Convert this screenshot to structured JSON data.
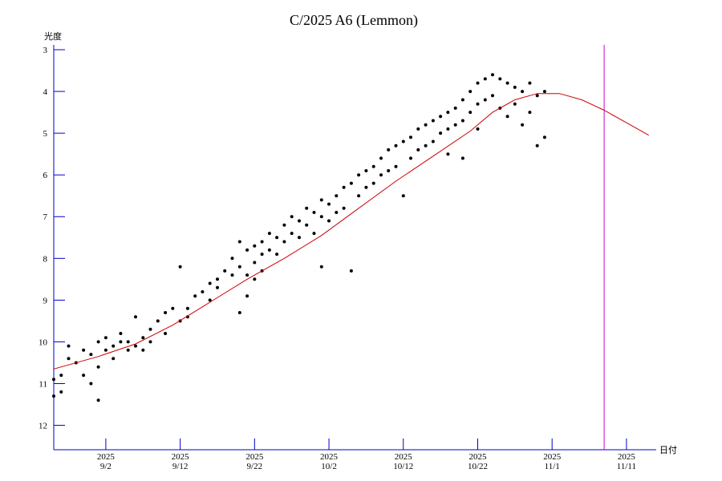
{
  "chart_data": {
    "type": "scatter",
    "title": "C/2025 A6 (Lemmon)",
    "ylabel": "光度",
    "xlabel": "日付",
    "y_inverted": true,
    "ylim": [
      3,
      12.7
    ],
    "xlim": [
      "2025-08-26",
      "2025-11-15"
    ],
    "y_ticks": [
      "3",
      "4",
      "5",
      "6",
      "7",
      "8",
      "9",
      "10",
      "11",
      "12"
    ],
    "x_ticks": [
      {
        "date": "2025-09-02",
        "year": "2025",
        "label": "9/2"
      },
      {
        "date": "2025-09-12",
        "year": "2025",
        "label": "9/12"
      },
      {
        "date": "2025-09-22",
        "year": "2025",
        "label": "9/22"
      },
      {
        "date": "2025-10-02",
        "year": "2025",
        "label": "10/2"
      },
      {
        "date": "2025-10-12",
        "year": "2025",
        "label": "10/12"
      },
      {
        "date": "2025-10-22",
        "year": "2025",
        "label": "10/22"
      },
      {
        "date": "2025-11-01",
        "year": "2025",
        "label": "11/1"
      },
      {
        "date": "2025-11-11",
        "year": "2025",
        "label": "11/11"
      }
    ],
    "vertical_marker": {
      "date": "2025-11-08",
      "color": "#cc00cc"
    },
    "fit_curve": {
      "color": "#cc0000",
      "x": [
        "2025-08-26",
        "2025-09-01",
        "2025-09-06",
        "2025-09-11",
        "2025-09-16",
        "2025-09-21",
        "2025-09-26",
        "2025-10-01",
        "2025-10-06",
        "2025-10-11",
        "2025-10-16",
        "2025-10-21",
        "2025-10-24",
        "2025-10-27",
        "2025-10-30",
        "2025-11-02",
        "2025-11-05",
        "2025-11-08",
        "2025-11-11",
        "2025-11-14"
      ],
      "y": [
        10.65,
        10.35,
        10.05,
        9.6,
        9.05,
        8.5,
        8.0,
        7.45,
        6.8,
        6.15,
        5.55,
        4.95,
        4.5,
        4.2,
        4.05,
        4.05,
        4.2,
        4.45,
        4.75,
        5.05
      ]
    },
    "points": {
      "color": "#000000",
      "x": [
        "2025-08-26",
        "2025-08-26",
        "2025-08-27",
        "2025-08-27",
        "2025-08-28",
        "2025-08-28",
        "2025-08-29",
        "2025-08-30",
        "2025-08-30",
        "2025-08-31",
        "2025-08-31",
        "2025-09-01",
        "2025-09-01",
        "2025-09-01",
        "2025-09-02",
        "2025-09-02",
        "2025-09-03",
        "2025-09-03",
        "2025-09-04",
        "2025-09-04",
        "2025-09-05",
        "2025-09-05",
        "2025-09-06",
        "2025-09-06",
        "2025-09-07",
        "2025-09-07",
        "2025-09-08",
        "2025-09-08",
        "2025-09-09",
        "2025-09-10",
        "2025-09-10",
        "2025-09-11",
        "2025-09-12",
        "2025-09-12",
        "2025-09-13",
        "2025-09-13",
        "2025-09-14",
        "2025-09-15",
        "2025-09-16",
        "2025-09-16",
        "2025-09-17",
        "2025-09-17",
        "2025-09-18",
        "2025-09-19",
        "2025-09-19",
        "2025-09-20",
        "2025-09-20",
        "2025-09-20",
        "2025-09-21",
        "2025-09-21",
        "2025-09-21",
        "2025-09-22",
        "2025-09-22",
        "2025-09-22",
        "2025-09-23",
        "2025-09-23",
        "2025-09-23",
        "2025-09-24",
        "2025-09-24",
        "2025-09-25",
        "2025-09-25",
        "2025-09-26",
        "2025-09-26",
        "2025-09-27",
        "2025-09-27",
        "2025-09-28",
        "2025-09-28",
        "2025-09-29",
        "2025-09-29",
        "2025-09-30",
        "2025-09-30",
        "2025-10-01",
        "2025-10-01",
        "2025-10-01",
        "2025-10-02",
        "2025-10-02",
        "2025-10-03",
        "2025-10-03",
        "2025-10-04",
        "2025-10-04",
        "2025-10-05",
        "2025-10-05",
        "2025-10-06",
        "2025-10-06",
        "2025-10-07",
        "2025-10-07",
        "2025-10-08",
        "2025-10-08",
        "2025-10-09",
        "2025-10-09",
        "2025-10-10",
        "2025-10-10",
        "2025-10-11",
        "2025-10-11",
        "2025-10-12",
        "2025-10-12",
        "2025-10-13",
        "2025-10-13",
        "2025-10-14",
        "2025-10-14",
        "2025-10-15",
        "2025-10-15",
        "2025-10-16",
        "2025-10-16",
        "2025-10-17",
        "2025-10-17",
        "2025-10-18",
        "2025-10-18",
        "2025-10-18",
        "2025-10-19",
        "2025-10-19",
        "2025-10-20",
        "2025-10-20",
        "2025-10-20",
        "2025-10-21",
        "2025-10-21",
        "2025-10-22",
        "2025-10-22",
        "2025-10-22",
        "2025-10-23",
        "2025-10-23",
        "2025-10-24",
        "2025-10-24",
        "2025-10-25",
        "2025-10-25",
        "2025-10-26",
        "2025-10-26",
        "2025-10-27",
        "2025-10-27",
        "2025-10-28",
        "2025-10-28",
        "2025-10-29",
        "2025-10-29",
        "2025-10-30",
        "2025-10-30",
        "2025-10-31",
        "2025-10-31"
      ],
      "y": [
        11.3,
        10.9,
        10.8,
        11.2,
        10.4,
        10.1,
        10.5,
        10.8,
        10.2,
        11.0,
        10.3,
        10.6,
        10.0,
        11.4,
        10.2,
        9.9,
        10.4,
        10.1,
        10.0,
        9.8,
        10.2,
        10.0,
        9.4,
        10.1,
        9.9,
        10.2,
        9.7,
        10.0,
        9.5,
        9.3,
        9.8,
        9.2,
        9.5,
        8.2,
        9.2,
        9.4,
        8.9,
        8.8,
        8.6,
        9.0,
        8.5,
        8.7,
        8.3,
        8.0,
        8.4,
        7.6,
        8.2,
        9.3,
        7.8,
        8.4,
        8.9,
        7.7,
        8.1,
        8.5,
        7.9,
        8.3,
        7.6,
        7.4,
        7.8,
        7.5,
        7.9,
        7.2,
        7.6,
        7.0,
        7.4,
        7.1,
        7.5,
        6.8,
        7.2,
        6.9,
        7.4,
        6.6,
        7.0,
        8.2,
        6.7,
        7.1,
        6.5,
        6.9,
        6.3,
        6.8,
        6.2,
        8.3,
        6.0,
        6.5,
        5.9,
        6.3,
        5.8,
        6.2,
        5.6,
        6.0,
        5.4,
        5.9,
        5.3,
        5.8,
        5.2,
        6.5,
        5.1,
        5.6,
        4.9,
        5.4,
        4.8,
        5.3,
        4.7,
        5.2,
        4.6,
        5.0,
        4.5,
        4.9,
        5.5,
        4.4,
        4.8,
        4.2,
        4.7,
        5.6,
        4.0,
        4.5,
        3.8,
        4.3,
        4.9,
        3.7,
        4.2,
        3.6,
        4.1,
        3.7,
        4.4,
        3.8,
        4.6,
        3.9,
        4.3,
        4.0,
        4.8,
        3.8,
        4.5,
        4.1,
        5.3,
        4.0,
        5.1
      ]
    }
  }
}
